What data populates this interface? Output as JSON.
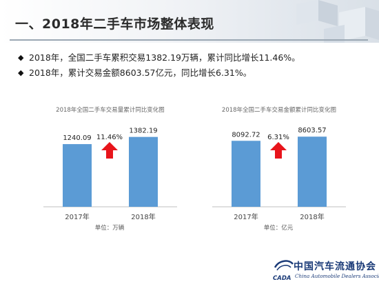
{
  "header": {
    "title": "一、2018年二手车市场整体表现"
  },
  "bullets": [
    "2018年，全国二手车累积交易1382.19万辆，累计同比增长11.46%。",
    "2018年，累计交易金额8603.57亿元，同比增长6.31%。"
  ],
  "colors": {
    "bar": "#5b9bd5",
    "arrow": "#e8141b",
    "header_rule": "#9aa7b3",
    "logo": "#1b3b78"
  },
  "chart_data": [
    {
      "type": "bar",
      "title": "2018年全国二手车交易量累计同比变化图",
      "categories": [
        "2017年",
        "2018年"
      ],
      "values": [
        1240.09,
        1382.19
      ],
      "data_labels": [
        "1240.09",
        "1382.19"
      ],
      "growth_label": "11.46%",
      "growth_arrow": "up",
      "unit_label": "单位：万辆",
      "ylim": [
        0,
        1500
      ],
      "grid": false,
      "legend": "none"
    },
    {
      "type": "bar",
      "title": "2018年全国二手车交易金额累计同比变化图",
      "categories": [
        "2017年",
        "2018年"
      ],
      "values": [
        8092.72,
        8603.57
      ],
      "data_labels": [
        "8092.72",
        "8603.57"
      ],
      "growth_label": "6.31%",
      "growth_arrow": "up",
      "unit_label": "单位：亿元",
      "ylim": [
        0,
        9300
      ],
      "grid": false,
      "legend": "none"
    }
  ],
  "logo": {
    "icon_text": "CADA",
    "chinese_name": "中国汽车流通协会",
    "english_name": "China Automobile Dealers Association"
  }
}
